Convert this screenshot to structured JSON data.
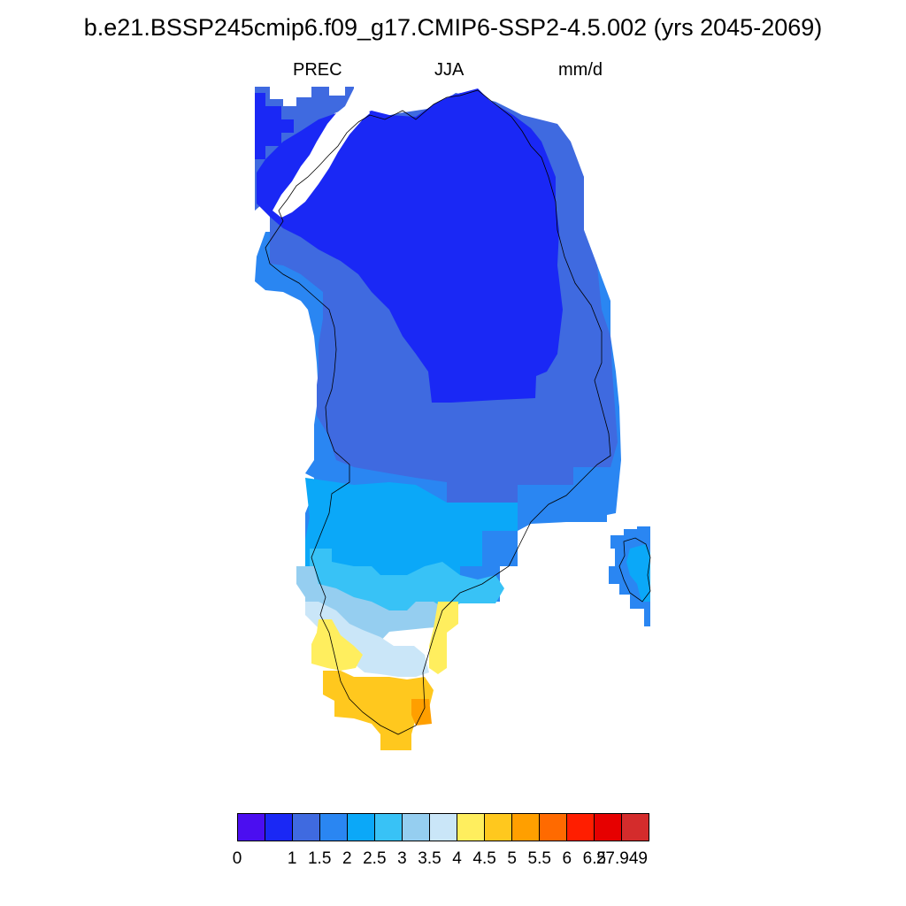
{
  "title": "b.e21.BSSP245cmip6.f09_g17.CMIP6-SSP2-4.5.002 (yrs 2045-2069)",
  "subtitle": {
    "variable": "PREC",
    "season": "JJA",
    "units": "mm/d"
  },
  "colorbar": {
    "colors": [
      "#4B0EF0",
      "#1A28F5",
      "#3F6AE0",
      "#2A86F2",
      "#0BA8F8",
      "#38C2F6",
      "#95CEF0",
      "#CAE6F8",
      "#FFEE5E",
      "#FFC81E",
      "#FF9F00",
      "#FF6A00",
      "#FF1E00",
      "#E60000",
      "#D42C2C"
    ],
    "labels": [
      "0",
      "1",
      "1.5",
      "2",
      "2.5",
      "3",
      "3.5",
      "4",
      "4.5",
      "5",
      "5.5",
      "6",
      "6.5",
      "27.949"
    ]
  },
  "map_data": {
    "variable": "PREC",
    "region": "Greenland",
    "type": "filled-contour-map"
  }
}
